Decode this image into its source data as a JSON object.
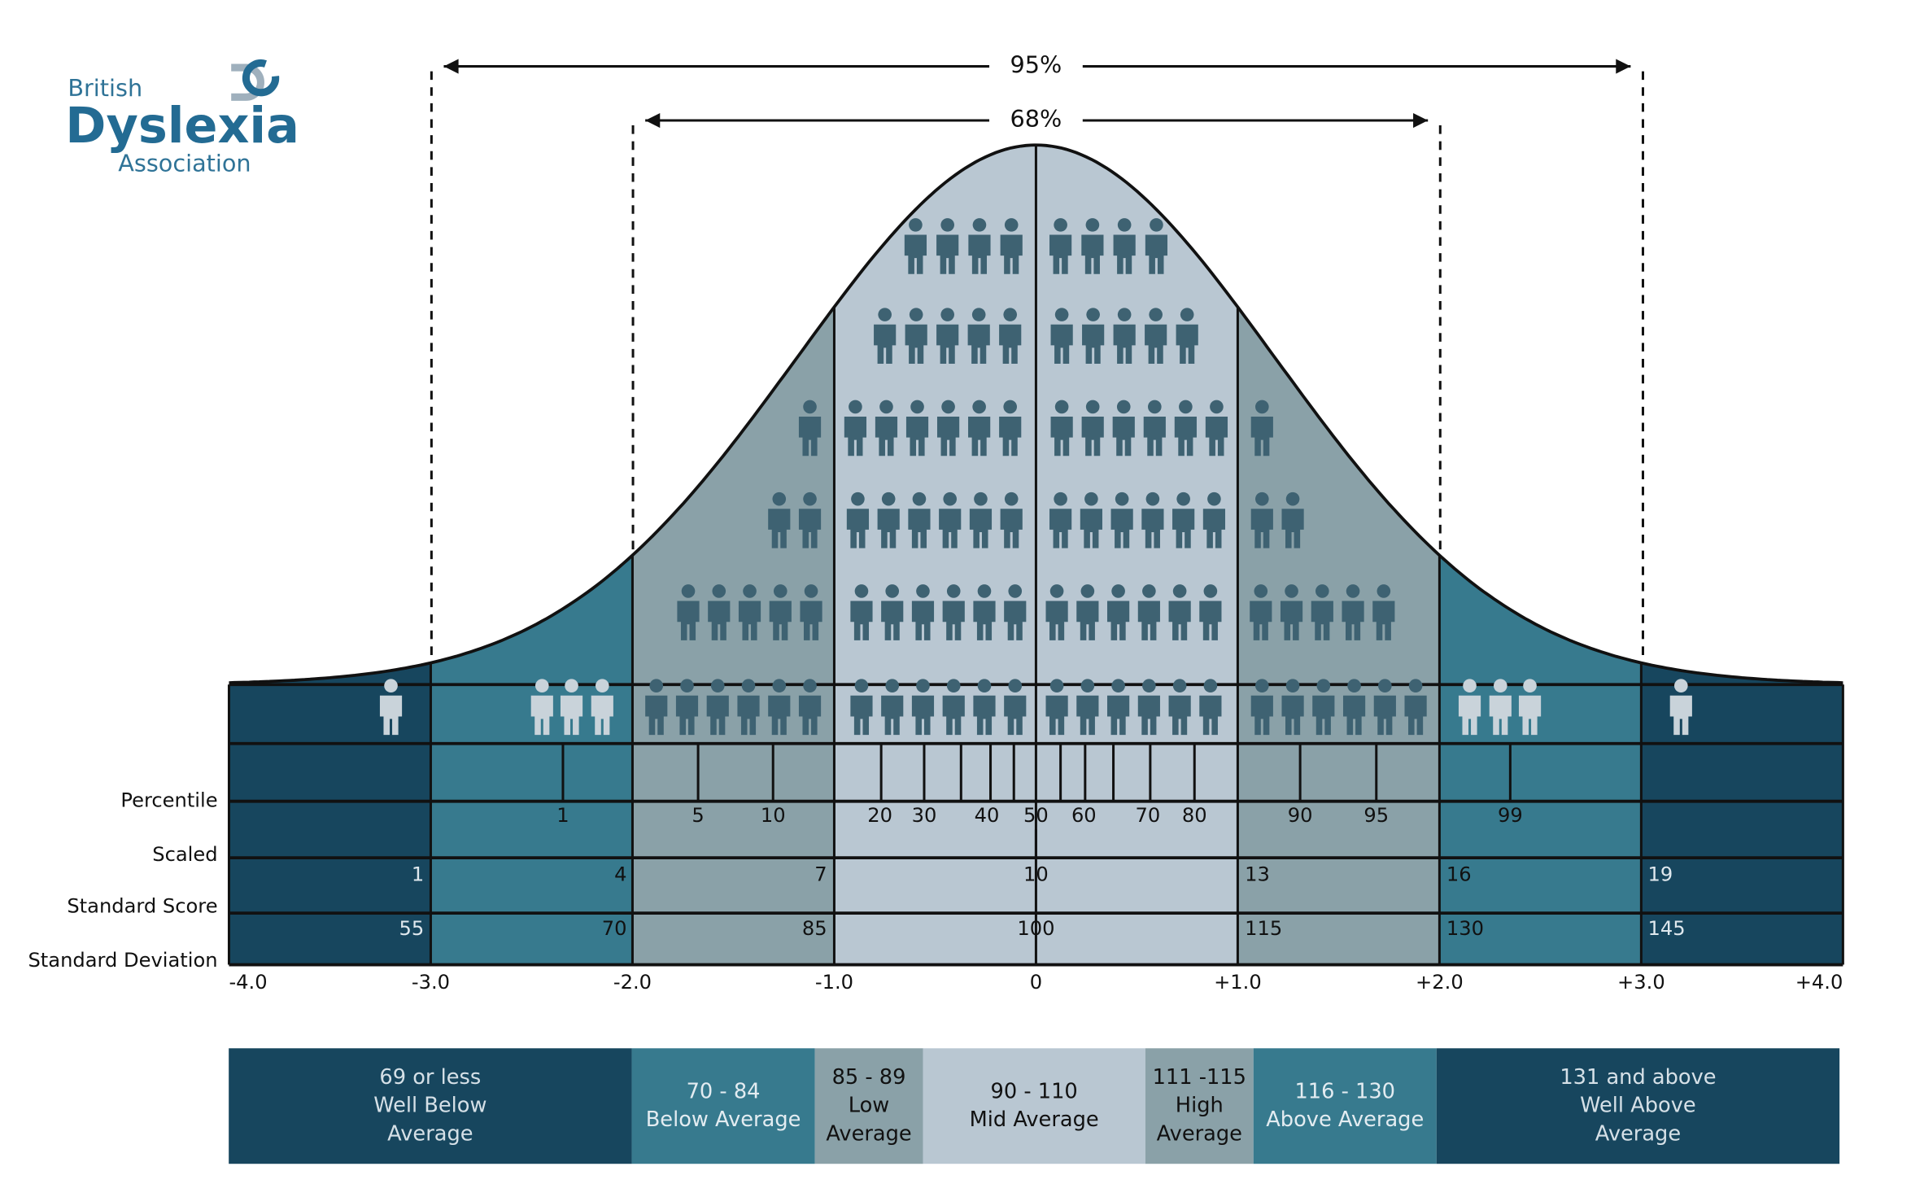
{
  "logo": {
    "line1": "British",
    "line2": "Dyslexia",
    "line3": "Association"
  },
  "ranges": {
    "outer": "95%",
    "inner": "68%"
  },
  "row_labels": [
    "Percentile",
    "Scaled",
    "Standard Score",
    "Standard Deviation"
  ],
  "percentiles": [
    "1",
    "5",
    "10",
    "20",
    "30",
    "40",
    "50",
    "60",
    "70",
    "80",
    "90",
    "95",
    "99"
  ],
  "scaled": [
    "1",
    "4",
    "7",
    "10",
    "13",
    "16",
    "19"
  ],
  "standard_scores": [
    "55",
    "70",
    "85",
    "100",
    "115",
    "130",
    "145"
  ],
  "sd_ticks": [
    "-4.0",
    "-3.0",
    "-2.0",
    "-1.0",
    "0",
    "+1.0",
    "+2.0",
    "+3.0",
    "+4.0"
  ],
  "bands": [
    {
      "lines": [
        "69 or less",
        "Well Below",
        "Average"
      ]
    },
    {
      "lines": [
        "70 - 84",
        "Below Average"
      ]
    },
    {
      "lines": [
        "85 - 89",
        "Low",
        "Average"
      ]
    },
    {
      "lines": [
        "90 - 110",
        "Mid Average"
      ]
    },
    {
      "lines": [
        "111 -115",
        "High",
        "Average"
      ]
    },
    {
      "lines": [
        "116 - 130",
        "Above Average"
      ]
    },
    {
      "lines": [
        "131 and above",
        "Well Above",
        "Average"
      ]
    }
  ]
}
